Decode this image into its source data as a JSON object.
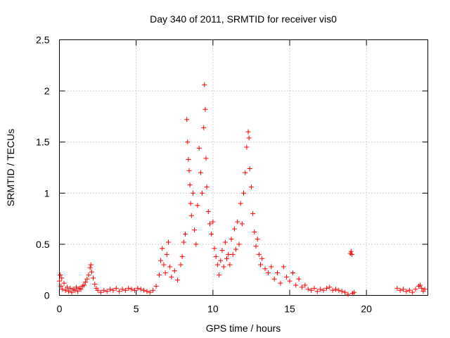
{
  "chart_data": {
    "type": "scatter",
    "title": "Day 340 of 2011, SRMTID for receiver vis0",
    "xlabel": "GPS time / hours",
    "ylabel": "SRMTID / TECUs",
    "xlim": [
      0,
      24
    ],
    "ylim": [
      0,
      2.5
    ],
    "xticks": [
      0,
      5,
      10,
      15,
      20
    ],
    "xtick_labels": [
      "0",
      "5",
      "10",
      "15",
      "20"
    ],
    "yticks": [
      0,
      0.5,
      1,
      1.5,
      2,
      2.5
    ],
    "ytick_labels": [
      "0",
      "0.5",
      "1",
      "1.5",
      "2",
      "2.5"
    ],
    "grid": true,
    "marker": "+",
    "color": "#ff0000",
    "series": [
      {
        "name": "vis0",
        "points": [
          [
            0.0,
            0.14
          ],
          [
            0.05,
            0.2
          ],
          [
            0.1,
            0.09
          ],
          [
            0.15,
            0.17
          ],
          [
            0.2,
            0.06
          ],
          [
            0.3,
            0.12
          ],
          [
            0.4,
            0.05
          ],
          [
            0.5,
            0.08
          ],
          [
            0.6,
            0.04
          ],
          [
            0.7,
            0.07
          ],
          [
            0.8,
            0.03
          ],
          [
            0.9,
            0.06
          ],
          [
            1.0,
            0.05
          ],
          [
            1.1,
            0.08
          ],
          [
            1.2,
            0.04
          ],
          [
            1.3,
            0.07
          ],
          [
            1.4,
            0.06
          ],
          [
            1.5,
            0.09
          ],
          [
            1.6,
            0.1
          ],
          [
            1.7,
            0.13
          ],
          [
            1.8,
            0.16
          ],
          [
            1.9,
            0.2
          ],
          [
            2.0,
            0.27
          ],
          [
            2.05,
            0.3
          ],
          [
            2.1,
            0.23
          ],
          [
            2.2,
            0.17
          ],
          [
            2.3,
            0.11
          ],
          [
            2.4,
            0.07
          ],
          [
            2.5,
            0.05
          ],
          [
            2.7,
            0.03
          ],
          [
            2.9,
            0.05
          ],
          [
            3.1,
            0.04
          ],
          [
            3.3,
            0.06
          ],
          [
            3.5,
            0.05
          ],
          [
            3.7,
            0.07
          ],
          [
            3.9,
            0.04
          ],
          [
            4.1,
            0.06
          ],
          [
            4.3,
            0.05
          ],
          [
            4.5,
            0.07
          ],
          [
            4.7,
            0.06
          ],
          [
            4.9,
            0.05
          ],
          [
            5.1,
            0.07
          ],
          [
            5.3,
            0.06
          ],
          [
            5.5,
            0.05
          ],
          [
            5.7,
            0.04
          ],
          [
            5.9,
            0.03
          ],
          [
            6.1,
            0.05
          ],
          [
            6.3,
            0.09
          ],
          [
            6.5,
            0.2
          ],
          [
            6.6,
            0.34
          ],
          [
            6.7,
            0.46
          ],
          [
            6.8,
            0.3
          ],
          [
            6.9,
            0.22
          ],
          [
            7.0,
            0.4
          ],
          [
            7.1,
            0.52
          ],
          [
            7.2,
            0.28
          ],
          [
            7.3,
            0.18
          ],
          [
            7.5,
            0.24
          ],
          [
            7.7,
            0.15
          ],
          [
            7.9,
            0.3
          ],
          [
            8.0,
            0.38
          ],
          [
            8.1,
            0.52
          ],
          [
            8.2,
            0.6
          ],
          [
            8.3,
            1.72
          ],
          [
            8.35,
            1.5
          ],
          [
            8.4,
            1.33
          ],
          [
            8.45,
            1.22
          ],
          [
            8.5,
            1.08
          ],
          [
            8.55,
            0.9
          ],
          [
            8.6,
            0.78
          ],
          [
            8.7,
            1.0
          ],
          [
            8.8,
            0.64
          ],
          [
            8.9,
            0.5
          ],
          [
            9.0,
            0.88
          ],
          [
            9.1,
            1.44
          ],
          [
            9.2,
            1.2
          ],
          [
            9.3,
            1.0
          ],
          [
            9.4,
            1.64
          ],
          [
            9.45,
            2.06
          ],
          [
            9.5,
            1.82
          ],
          [
            9.55,
            1.34
          ],
          [
            9.6,
            1.06
          ],
          [
            9.7,
            0.82
          ],
          [
            9.8,
            0.7
          ],
          [
            9.9,
            0.6
          ],
          [
            10.0,
            0.72
          ],
          [
            10.1,
            0.46
          ],
          [
            10.2,
            0.38
          ],
          [
            10.3,
            0.3
          ],
          [
            10.4,
            0.2
          ],
          [
            10.5,
            0.34
          ],
          [
            10.6,
            0.44
          ],
          [
            10.7,
            0.28
          ],
          [
            10.8,
            0.52
          ],
          [
            10.9,
            0.36
          ],
          [
            11.0,
            0.4
          ],
          [
            11.1,
            0.3
          ],
          [
            11.2,
            0.55
          ],
          [
            11.3,
            0.4
          ],
          [
            11.4,
            0.65
          ],
          [
            11.5,
            0.45
          ],
          [
            11.6,
            0.72
          ],
          [
            11.7,
            0.5
          ],
          [
            11.8,
            0.9
          ],
          [
            11.9,
            0.7
          ],
          [
            12.0,
            1.0
          ],
          [
            12.1,
            1.2
          ],
          [
            12.2,
            1.45
          ],
          [
            12.3,
            1.6
          ],
          [
            12.35,
            1.54
          ],
          [
            12.4,
            1.24
          ],
          [
            12.5,
            1.06
          ],
          [
            12.6,
            0.8
          ],
          [
            12.7,
            0.62
          ],
          [
            12.8,
            0.48
          ],
          [
            12.9,
            0.55
          ],
          [
            13.0,
            0.4
          ],
          [
            13.1,
            0.3
          ],
          [
            13.2,
            0.36
          ],
          [
            13.4,
            0.26
          ],
          [
            13.6,
            0.22
          ],
          [
            13.8,
            0.28
          ],
          [
            14.0,
            0.16
          ],
          [
            14.2,
            0.22
          ],
          [
            14.4,
            0.12
          ],
          [
            14.6,
            0.28
          ],
          [
            14.8,
            0.18
          ],
          [
            15.0,
            0.14
          ],
          [
            15.2,
            0.22
          ],
          [
            15.4,
            0.1
          ],
          [
            15.6,
            0.16
          ],
          [
            15.8,
            0.08
          ],
          [
            16.0,
            0.1
          ],
          [
            16.2,
            0.06
          ],
          [
            16.4,
            0.05
          ],
          [
            16.6,
            0.07
          ],
          [
            16.8,
            0.04
          ],
          [
            17.0,
            0.06
          ],
          [
            17.2,
            0.05
          ],
          [
            17.4,
            0.07
          ],
          [
            17.6,
            0.08
          ],
          [
            17.8,
            0.05
          ],
          [
            18.0,
            0.06
          ],
          [
            18.2,
            0.05
          ],
          [
            18.4,
            0.04
          ],
          [
            18.6,
            0.03
          ],
          [
            18.8,
            0.01
          ],
          [
            18.95,
            0.41
          ],
          [
            19.0,
            0.43
          ],
          [
            19.05,
            0.4
          ],
          [
            19.1,
            0.02
          ],
          [
            19.2,
            0.03
          ],
          [
            22.0,
            0.07
          ],
          [
            22.2,
            0.05
          ],
          [
            22.4,
            0.06
          ],
          [
            22.6,
            0.04
          ],
          [
            22.8,
            0.05
          ],
          [
            23.0,
            0.03
          ],
          [
            23.2,
            0.06
          ],
          [
            23.4,
            0.09
          ],
          [
            23.5,
            0.1
          ],
          [
            23.6,
            0.07
          ],
          [
            23.7,
            0.04
          ],
          [
            23.8,
            0.06
          ]
        ]
      }
    ]
  }
}
